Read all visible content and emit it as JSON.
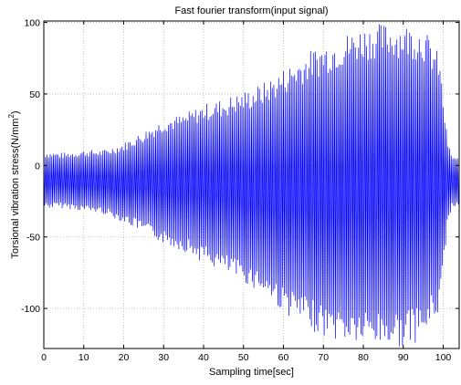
{
  "colors": {
    "signal": "#0000ff",
    "grid": "#b4b4b4",
    "axis": "#000000",
    "background": "#ffffff"
  },
  "chart_data": {
    "type": "line",
    "title": "Fast fourier transform(input signal)",
    "xlabel": "Sampling time[sec]",
    "ylabel_main": "Torsional vibration stress(N/mm",
    "ylabel_sup": "2",
    "ylabel_close": ")",
    "xlim": [
      0,
      104
    ],
    "ylim": [
      -128,
      101
    ],
    "grid": true,
    "grid_style": "dotted",
    "x_ticks": [
      0,
      10,
      20,
      30,
      40,
      50,
      60,
      70,
      80,
      90,
      100
    ],
    "x_tick_labels": [
      "0",
      "10",
      "20",
      "30",
      "40",
      "50",
      "60",
      "70",
      "80",
      "90",
      "100"
    ],
    "y_ticks": [
      100,
      50,
      0,
      -50,
      -100
    ],
    "y_tick_labels": [
      "100",
      "50",
      "0",
      "-50",
      "-100"
    ],
    "series": [
      {
        "sample_rate_per_sec": 5,
        "x_range": [
          0,
          104
        ],
        "upper_envelope": {
          "x": [
            0,
            5,
            10,
            15,
            20,
            25,
            30,
            35,
            40,
            45,
            50,
            55,
            60,
            65,
            70,
            75,
            80,
            85,
            90,
            95,
            99,
            101,
            102,
            104
          ],
          "y": [
            10,
            9,
            11,
            11,
            16,
            24,
            33,
            36,
            43,
            47,
            52,
            58,
            68,
            78,
            86,
            92,
            98,
            100,
            100,
            97,
            78,
            20,
            8,
            5
          ]
        },
        "lower_envelope": {
          "x": [
            0,
            5,
            10,
            15,
            20,
            25,
            30,
            35,
            40,
            45,
            50,
            55,
            60,
            65,
            70,
            75,
            80,
            85,
            90,
            95,
            99,
            101,
            102,
            104
          ],
          "y": [
            -30,
            -30,
            -32,
            -34,
            -40,
            -47,
            -55,
            -60,
            -68,
            -75,
            -82,
            -90,
            -103,
            -112,
            -120,
            -124,
            -126,
            -127,
            -127,
            -122,
            -103,
            -45,
            -30,
            -28
          ]
        }
      }
    ]
  }
}
